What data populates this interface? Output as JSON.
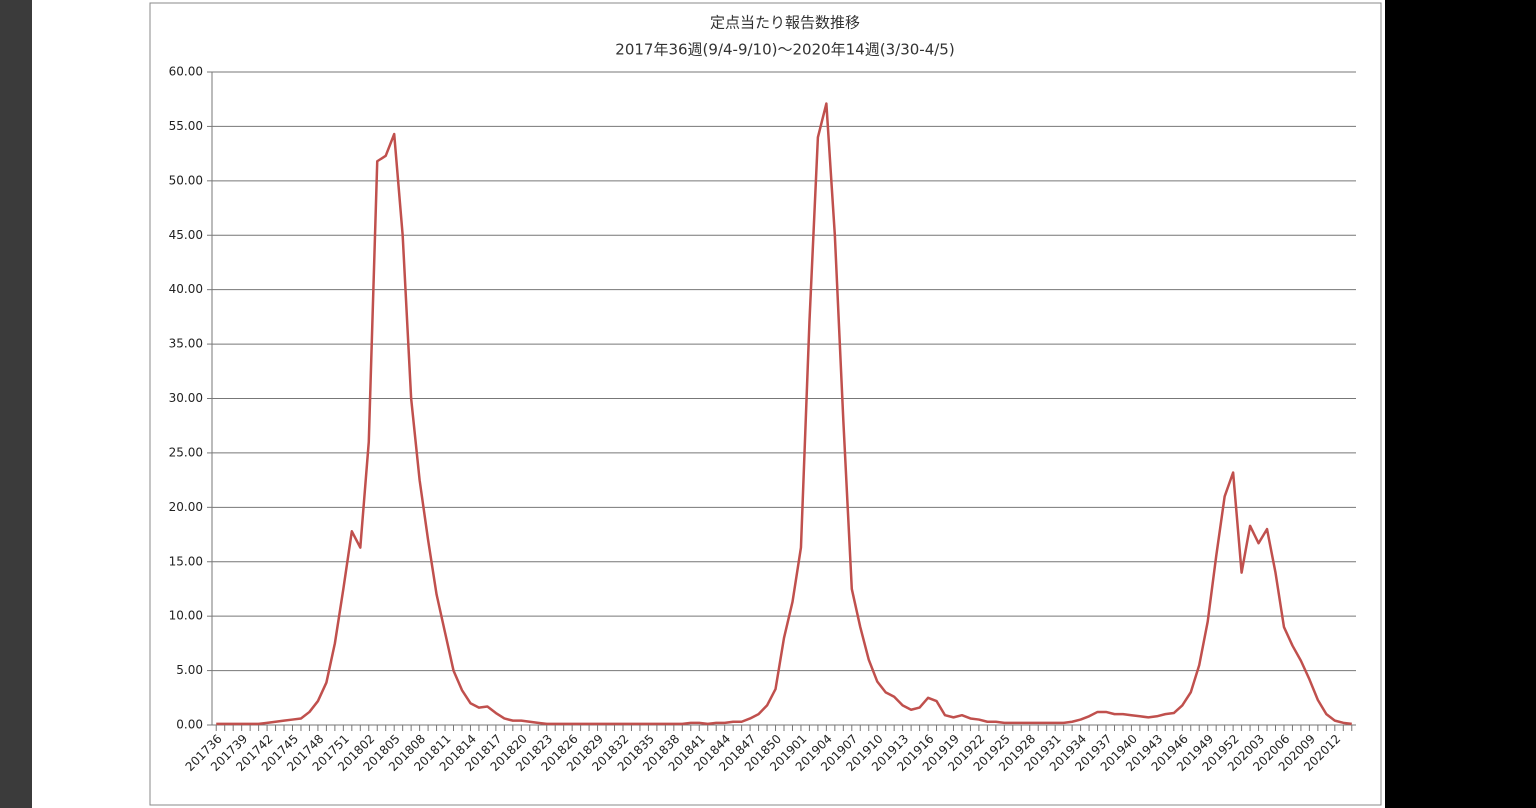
{
  "chart_data": {
    "type": "line",
    "title": "定点当たり報告数推移",
    "subtitle": "2017年36週(9/4-9/10)～2020年14週(3/30-4/5)",
    "categories": [
      "201736",
      null,
      null,
      "201739",
      null,
      null,
      "201742",
      null,
      null,
      "201745",
      null,
      null,
      "201748",
      null,
      null,
      "201751",
      null,
      null,
      "201802",
      null,
      null,
      "201805",
      null,
      null,
      "201808",
      null,
      null,
      "201811",
      null,
      null,
      "201814",
      null,
      null,
      "201817",
      null,
      null,
      "201820",
      null,
      null,
      "201823",
      null,
      null,
      "201826",
      null,
      null,
      "201829",
      null,
      null,
      "201832",
      null,
      null,
      "201835",
      null,
      null,
      "201838",
      null,
      null,
      "201841",
      null,
      null,
      "201844",
      null,
      null,
      "201847",
      null,
      null,
      "201850",
      null,
      null,
      "201901",
      null,
      null,
      "201904",
      null,
      null,
      "201907",
      null,
      null,
      "201910",
      null,
      null,
      "201913",
      null,
      null,
      "201916",
      null,
      null,
      "201919",
      null,
      null,
      "201922",
      null,
      null,
      "201925",
      null,
      null,
      "201928",
      null,
      null,
      "201931",
      null,
      null,
      "201934",
      null,
      null,
      "201937",
      null,
      null,
      "201940",
      null,
      null,
      "201943",
      null,
      null,
      "201946",
      null,
      null,
      "201949",
      null,
      null,
      "201952",
      null,
      null,
      "202003",
      null,
      null,
      "202006",
      null,
      null,
      "202009",
      null,
      null,
      "202012",
      null,
      null
    ],
    "series": [
      {
        "color": "#c0504d",
        "values": [
          0.1,
          0.1,
          0.1,
          0.1,
          0.1,
          0.1,
          0.2,
          0.3,
          0.4,
          0.5,
          0.6,
          1.2,
          2.2,
          3.9,
          7.5,
          12.5,
          17.8,
          16.3,
          26,
          51.8,
          52.3,
          54.3,
          45,
          30,
          22.5,
          17,
          12,
          8.5,
          5,
          3.2,
          2,
          1.6,
          1.7,
          1.1,
          0.6,
          0.4,
          0.4,
          0.3,
          0.2,
          0.1,
          0.1,
          0.1,
          0.1,
          0.1,
          0.1,
          0.1,
          0.1,
          0.1,
          0.1,
          0.1,
          0.1,
          0.1,
          0.1,
          0.1,
          0.1,
          0.1,
          0.2,
          0.2,
          0.1,
          0.2,
          0.2,
          0.3,
          0.3,
          0.6,
          1.0,
          1.8,
          3.3,
          8,
          11.3,
          16.3,
          37,
          54,
          57.1,
          45,
          28,
          12.5,
          9,
          6,
          4,
          3,
          2.6,
          1.8,
          1.4,
          1.6,
          2.5,
          2.2,
          0.9,
          0.7,
          0.9,
          0.6,
          0.5,
          0.3,
          0.3,
          0.2,
          0.2,
          0.2,
          0.2,
          0.2,
          0.2,
          0.2,
          0.2,
          0.3,
          0.5,
          0.8,
          1.2,
          1.2,
          1.0,
          1.0,
          0.9,
          0.8,
          0.7,
          0.8,
          1.0,
          1.1,
          1.8,
          3,
          5.5,
          9.5,
          15.5,
          21,
          23.2,
          14,
          18.3,
          16.7,
          18,
          14,
          9,
          7.3,
          5.9,
          4.2,
          2.3,
          1.0,
          0.4,
          0.2,
          0.1
        ]
      }
    ],
    "ylim": [
      0,
      60
    ],
    "yticks": [
      {
        "value": 0,
        "label": "0.00"
      },
      {
        "value": 5,
        "label": "5.00"
      },
      {
        "value": 10,
        "label": "10.00"
      },
      {
        "value": 15,
        "label": "15.00"
      },
      {
        "value": 20,
        "label": "20.00"
      },
      {
        "value": 25,
        "label": "25.00"
      },
      {
        "value": 30,
        "label": "30.00"
      },
      {
        "value": 35,
        "label": "35.00"
      },
      {
        "value": 40,
        "label": "40.00"
      },
      {
        "value": 45,
        "label": "45.00"
      },
      {
        "value": 50,
        "label": "50.00"
      },
      {
        "value": 55,
        "label": "55.00"
      },
      {
        "value": 60,
        "label": "60.00"
      }
    ],
    "grid": true
  }
}
